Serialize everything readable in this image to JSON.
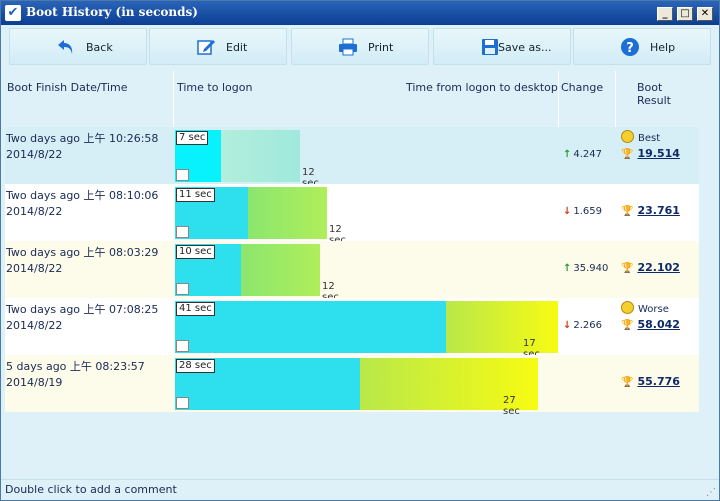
{
  "window": {
    "title": "Boot History (in seconds)"
  },
  "toolbar": {
    "back": "Back",
    "edit": "Edit",
    "print": "Print",
    "save_as": "Save as...",
    "help": "Help"
  },
  "columns": {
    "boot_finish": "Boot Finish Date/Time",
    "time_to_logon": "Time to logon",
    "time_to_desktop": "Time from logon to desktop",
    "change": "Change",
    "boot_result": "Boot Result"
  },
  "rows": [
    {
      "date_line": "Two days ago  上午 10:26:58",
      "date": "2014/8/22",
      "logon": "7 sec",
      "desktop": "12 sec",
      "change_dir": "up",
      "change": "4.247",
      "badge": "Best",
      "total": "19.514",
      "logon_sec": 7,
      "desktop_sec": 12
    },
    {
      "date_line": "Two days ago  上午 08:10:06",
      "date": "2014/8/22",
      "logon": "11 sec",
      "desktop": "12 sec",
      "change_dir": "down",
      "change": "1.659",
      "badge": "",
      "total": "23.761",
      "logon_sec": 11,
      "desktop_sec": 12
    },
    {
      "date_line": "Two days ago  上午 08:03:29",
      "date": "2014/8/22",
      "logon": "10 sec",
      "desktop": "12 sec",
      "change_dir": "up",
      "change": "35.940",
      "badge": "",
      "total": "22.102",
      "logon_sec": 10,
      "desktop_sec": 12
    },
    {
      "date_line": "Two days ago  上午 07:08:25",
      "date": "2014/8/22",
      "logon": "41 sec",
      "desktop": "17 sec",
      "change_dir": "down",
      "change": "2.266",
      "badge": "Worse",
      "total": "58.042",
      "logon_sec": 41,
      "desktop_sec": 17
    },
    {
      "date_line": "5 days ago  上午 08:23:57",
      "date": "2014/8/19",
      "logon": "28 sec",
      "desktop": "27 sec",
      "change_dir": "",
      "change": "",
      "badge": "",
      "total": "55.776",
      "logon_sec": 28,
      "desktop_sec": 27
    }
  ],
  "footer": {
    "hint": "Double click to add a comment"
  },
  "icons": {
    "back": "back-arrow-icon",
    "edit": "edit-icon",
    "print": "printer-icon",
    "save_as": "floppy-disk-icon",
    "help": "help-icon"
  },
  "colors": {
    "logon_fill": "#2ee0ee",
    "desktop_fill_good": "#a8ee66",
    "desktop_fill_bad": "#eef522",
    "highlight_row": "#d6eff6",
    "alt_row": "#fdfbea"
  }
}
